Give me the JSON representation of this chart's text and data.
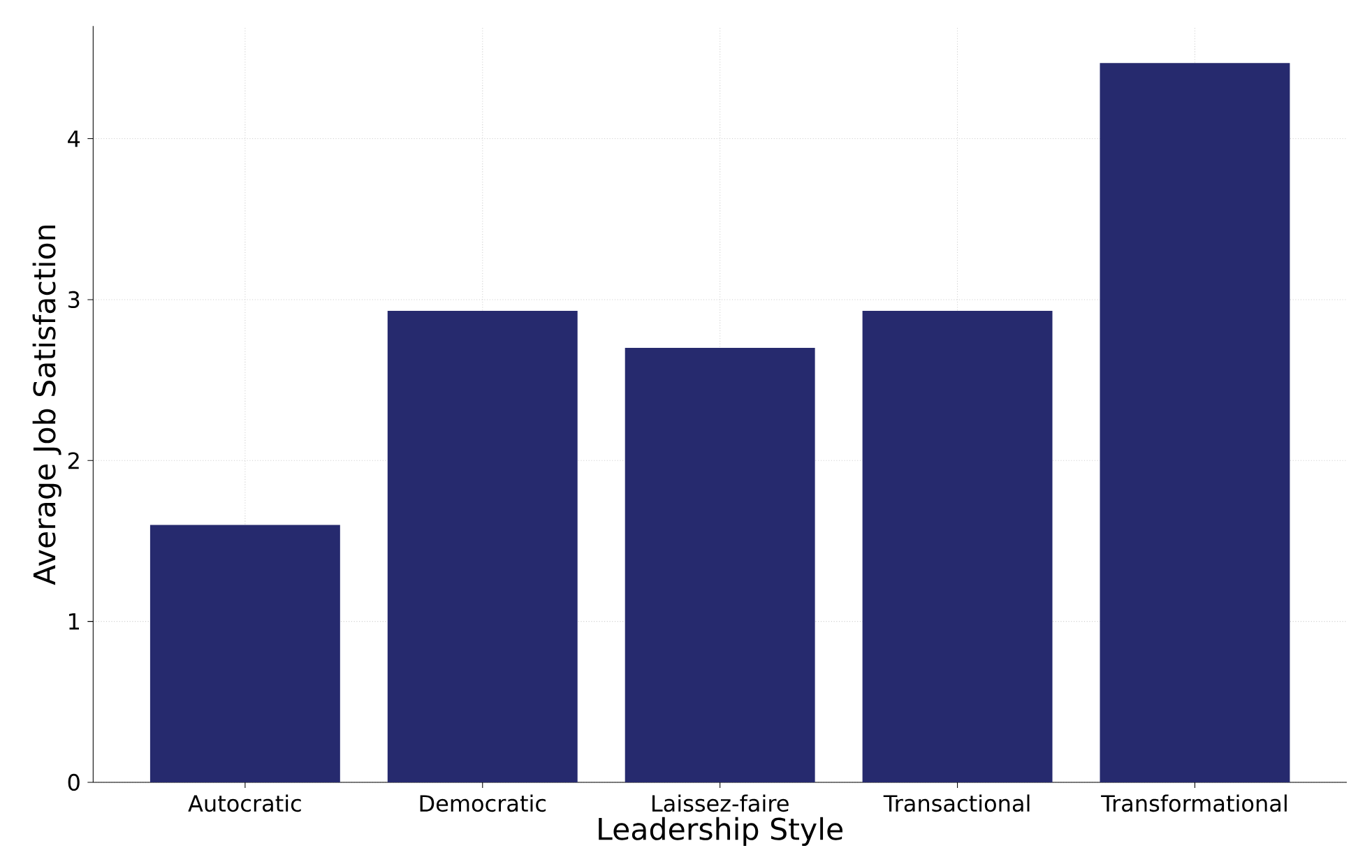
{
  "chart_data": {
    "type": "bar",
    "xlabel": "Leadership Style",
    "ylabel": "Average Job Satisfaction",
    "categories": [
      "Autocratic",
      "Democratic",
      "Laissez-faire",
      "Transactional",
      "Transformational"
    ],
    "values": [
      1.6,
      2.93,
      2.7,
      2.93,
      4.47
    ],
    "color": "#262a6e",
    "ylim": [
      0,
      4.7
    ],
    "yticks": [
      0,
      1,
      2,
      3,
      4
    ],
    "grid": true
  }
}
